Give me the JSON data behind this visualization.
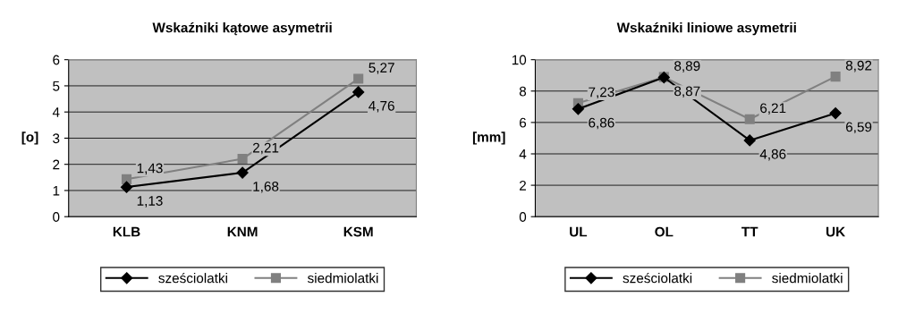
{
  "chart_data": [
    {
      "type": "line",
      "title": "Wskaźniki kątowe asymetrii",
      "ylabel": "[o]",
      "categories": [
        "KLB",
        "KNM",
        "KSM"
      ],
      "ylim": [
        0,
        6
      ],
      "yticks": [
        0,
        1,
        2,
        3,
        4,
        5,
        6
      ],
      "grid": "y",
      "legend": "bottom",
      "series": [
        {
          "name": "sześciolatki",
          "color": "#000000",
          "marker": "diamond",
          "values": [
            1.13,
            1.68,
            4.76
          ],
          "value_labels": [
            "1,13",
            "1,68",
            "4,76"
          ]
        },
        {
          "name": "siedmiolatki",
          "color": "#808080",
          "marker": "square",
          "values": [
            1.43,
            2.21,
            5.27
          ],
          "value_labels": [
            "1,43",
            "2,21",
            "5,27"
          ]
        }
      ]
    },
    {
      "type": "line",
      "title": "Wskaźniki liniowe asymetrii",
      "ylabel": "[mm]",
      "categories": [
        "UL",
        "OL",
        "TT",
        "UK"
      ],
      "ylim": [
        0,
        10
      ],
      "yticks": [
        0,
        2,
        4,
        6,
        8,
        10
      ],
      "grid": "y",
      "legend": "bottom",
      "series": [
        {
          "name": "sześciolatki",
          "color": "#000000",
          "marker": "diamond",
          "values": [
            6.86,
            8.87,
            4.86,
            6.59
          ],
          "value_labels": [
            "6,86",
            "8,87",
            "4,86",
            "6,59"
          ]
        },
        {
          "name": "siedmiolatki",
          "color": "#808080",
          "marker": "square",
          "values": [
            7.23,
            8.89,
            6.21,
            8.92
          ],
          "value_labels": [
            "7,23",
            "8,89",
            "6,21",
            "8,92"
          ]
        }
      ]
    }
  ]
}
